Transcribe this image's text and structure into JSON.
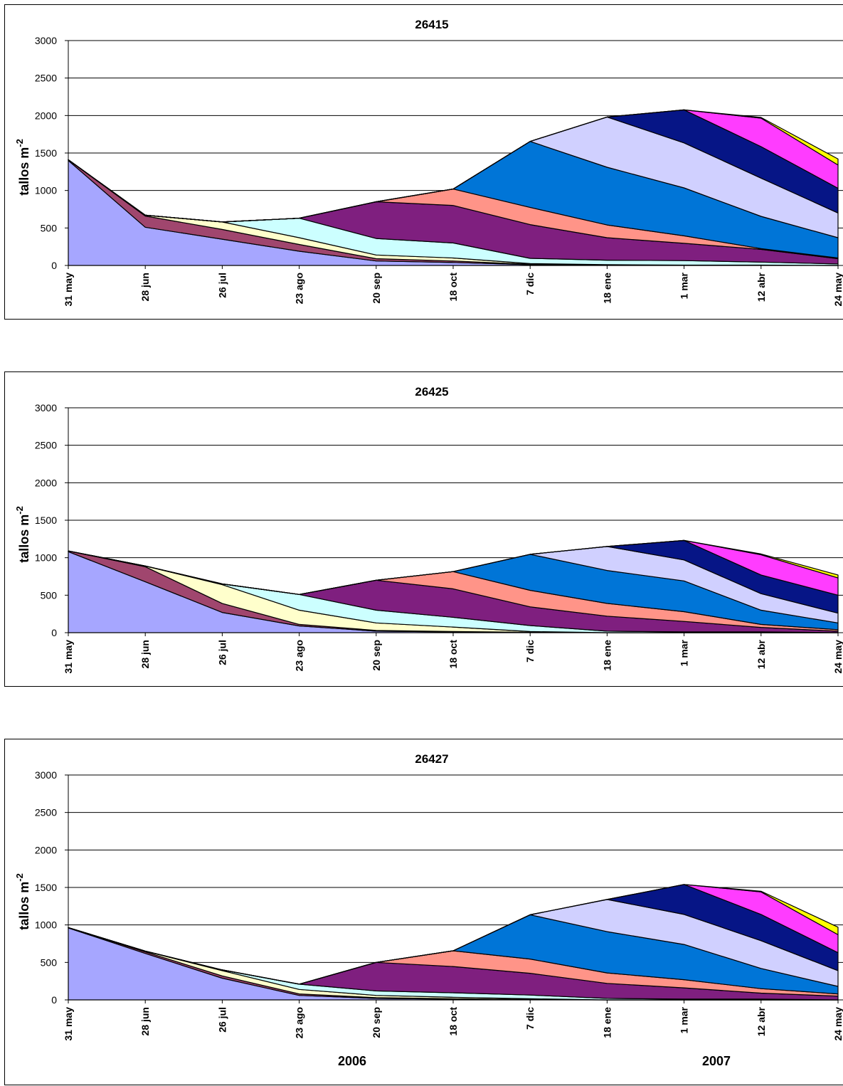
{
  "chart_data": [
    {
      "type": "area",
      "stacked": true,
      "title": "26415",
      "ylabel": "tallos m",
      "ylabel_sup": "-2",
      "ylim": [
        0,
        3000
      ],
      "yticks": [
        0,
        500,
        1000,
        1500,
        2000,
        2500,
        3000
      ],
      "categories": [
        "31 may",
        "28 jun",
        "26 jul",
        "23 ago",
        "20 sep",
        "18 oct",
        "7 dic",
        "18 ene",
        "1 mar",
        "12 abr",
        "24 may"
      ],
      "grid": true,
      "series": [
        {
          "color": "#a6a6ff",
          "values": [
            1400,
            510,
            350,
            190,
            60,
            40,
            10,
            5,
            5,
            5,
            0
          ]
        },
        {
          "color": "#a0466e",
          "values": [
            10,
            150,
            130,
            90,
            30,
            20,
            5,
            0,
            0,
            0,
            0
          ]
        },
        {
          "color": "#ffffcc",
          "values": [
            0,
            10,
            100,
            90,
            50,
            40,
            10,
            5,
            0,
            0,
            0
          ]
        },
        {
          "color": "#ccffff",
          "values": [
            0,
            0,
            0,
            260,
            220,
            200,
            70,
            60,
            60,
            40,
            20
          ]
        },
        {
          "color": "#7f1f7f",
          "values": [
            0,
            0,
            0,
            0,
            490,
            500,
            450,
            300,
            230,
            170,
            70
          ]
        },
        {
          "color": "#ff9488",
          "values": [
            0,
            0,
            0,
            0,
            0,
            220,
            230,
            170,
            100,
            10,
            10
          ]
        },
        {
          "color": "#0075d7",
          "values": [
            0,
            0,
            0,
            0,
            0,
            0,
            880,
            770,
            640,
            430,
            270
          ]
        },
        {
          "color": "#d0d0ff",
          "values": [
            0,
            0,
            0,
            0,
            0,
            0,
            0,
            670,
            600,
            510,
            330
          ]
        },
        {
          "color": "#061586",
          "values": [
            0,
            0,
            0,
            0,
            0,
            0,
            0,
            0,
            440,
            420,
            330
          ]
        },
        {
          "color": "#ff3cff",
          "values": [
            0,
            0,
            0,
            0,
            0,
            0,
            0,
            0,
            0,
            380,
            310
          ]
        },
        {
          "color": "#ffff00",
          "values": [
            0,
            0,
            0,
            0,
            0,
            0,
            0,
            0,
            0,
            10,
            80
          ]
        }
      ]
    },
    {
      "type": "area",
      "stacked": true,
      "title": "26425",
      "ylabel": "tallos m",
      "ylabel_sup": "-2",
      "ylim": [
        0,
        3000
      ],
      "yticks": [
        0,
        500,
        1000,
        1500,
        2000,
        2500,
        3000
      ],
      "categories": [
        "31 may",
        "28 jun",
        "26 jul",
        "23 ago",
        "20 sep",
        "18 oct",
        "7 dic",
        "18 ene",
        "1 mar",
        "12 abr",
        "24 may"
      ],
      "grid": true,
      "series": [
        {
          "color": "#a6a6ff",
          "values": [
            1080,
            680,
            270,
            90,
            20,
            10,
            5,
            0,
            0,
            0,
            0
          ]
        },
        {
          "color": "#a0466e",
          "values": [
            10,
            200,
            120,
            20,
            10,
            5,
            0,
            0,
            0,
            0,
            0
          ]
        },
        {
          "color": "#ffffcc",
          "values": [
            0,
            10,
            250,
            190,
            100,
            60,
            10,
            0,
            0,
            0,
            0
          ]
        },
        {
          "color": "#ccffff",
          "values": [
            0,
            0,
            10,
            210,
            170,
            130,
            80,
            20,
            10,
            10,
            0
          ]
        },
        {
          "color": "#7f1f7f",
          "values": [
            0,
            0,
            0,
            0,
            400,
            380,
            250,
            200,
            140,
            60,
            20
          ]
        },
        {
          "color": "#ff9488",
          "values": [
            0,
            0,
            0,
            0,
            0,
            230,
            220,
            170,
            130,
            40,
            20
          ]
        },
        {
          "color": "#0075d7",
          "values": [
            0,
            0,
            0,
            0,
            0,
            0,
            480,
            440,
            410,
            190,
            90
          ]
        },
        {
          "color": "#d0d0ff",
          "values": [
            0,
            0,
            0,
            0,
            0,
            0,
            0,
            320,
            280,
            220,
            130
          ]
        },
        {
          "color": "#061586",
          "values": [
            0,
            0,
            0,
            0,
            0,
            0,
            0,
            0,
            260,
            250,
            240
          ]
        },
        {
          "color": "#ff3cff",
          "values": [
            0,
            0,
            0,
            0,
            0,
            0,
            0,
            0,
            0,
            270,
            230
          ]
        },
        {
          "color": "#ffff00",
          "values": [
            0,
            0,
            0,
            0,
            0,
            0,
            0,
            0,
            0,
            10,
            40
          ]
        }
      ]
    },
    {
      "type": "area",
      "stacked": true,
      "title": "26427",
      "ylabel": "tallos m",
      "ylabel_sup": "-2",
      "ylim": [
        0,
        3000
      ],
      "yticks": [
        0,
        500,
        1000,
        1500,
        2000,
        2500,
        3000
      ],
      "categories": [
        "31 may",
        "28 jun",
        "26 jul",
        "23 ago",
        "20 sep",
        "18 oct",
        "7 dic",
        "18 ene",
        "1 mar",
        "12 abr",
        "24 may"
      ],
      "grid": true,
      "year_labels": [
        "2006",
        "2007"
      ],
      "series": [
        {
          "color": "#a6a6ff",
          "values": [
            960,
            620,
            290,
            60,
            20,
            10,
            5,
            0,
            0,
            0,
            0
          ]
        },
        {
          "color": "#a0466e",
          "values": [
            5,
            20,
            30,
            20,
            10,
            5,
            0,
            0,
            0,
            0,
            0
          ]
        },
        {
          "color": "#ffffcc",
          "values": [
            0,
            10,
            70,
            60,
            30,
            20,
            10,
            0,
            0,
            0,
            0
          ]
        },
        {
          "color": "#ccffff",
          "values": [
            0,
            0,
            10,
            70,
            60,
            60,
            50,
            20,
            10,
            10,
            0
          ]
        },
        {
          "color": "#7f1f7f",
          "values": [
            0,
            0,
            0,
            0,
            380,
            350,
            290,
            200,
            150,
            80,
            50
          ]
        },
        {
          "color": "#ff9488",
          "values": [
            0,
            0,
            0,
            0,
            0,
            210,
            190,
            140,
            110,
            60,
            30
          ]
        },
        {
          "color": "#0075d7",
          "values": [
            0,
            0,
            0,
            0,
            0,
            0,
            590,
            550,
            470,
            270,
            100
          ]
        },
        {
          "color": "#d0d0ff",
          "values": [
            0,
            0,
            0,
            0,
            0,
            0,
            0,
            430,
            400,
            370,
            210
          ]
        },
        {
          "color": "#061586",
          "values": [
            0,
            0,
            0,
            0,
            0,
            0,
            0,
            0,
            400,
            350,
            240
          ]
        },
        {
          "color": "#ff3cff",
          "values": [
            0,
            0,
            0,
            0,
            0,
            0,
            0,
            0,
            0,
            300,
            240
          ]
        },
        {
          "color": "#ffff00",
          "values": [
            0,
            0,
            0,
            0,
            0,
            0,
            0,
            0,
            0,
            10,
            100
          ]
        }
      ]
    }
  ]
}
